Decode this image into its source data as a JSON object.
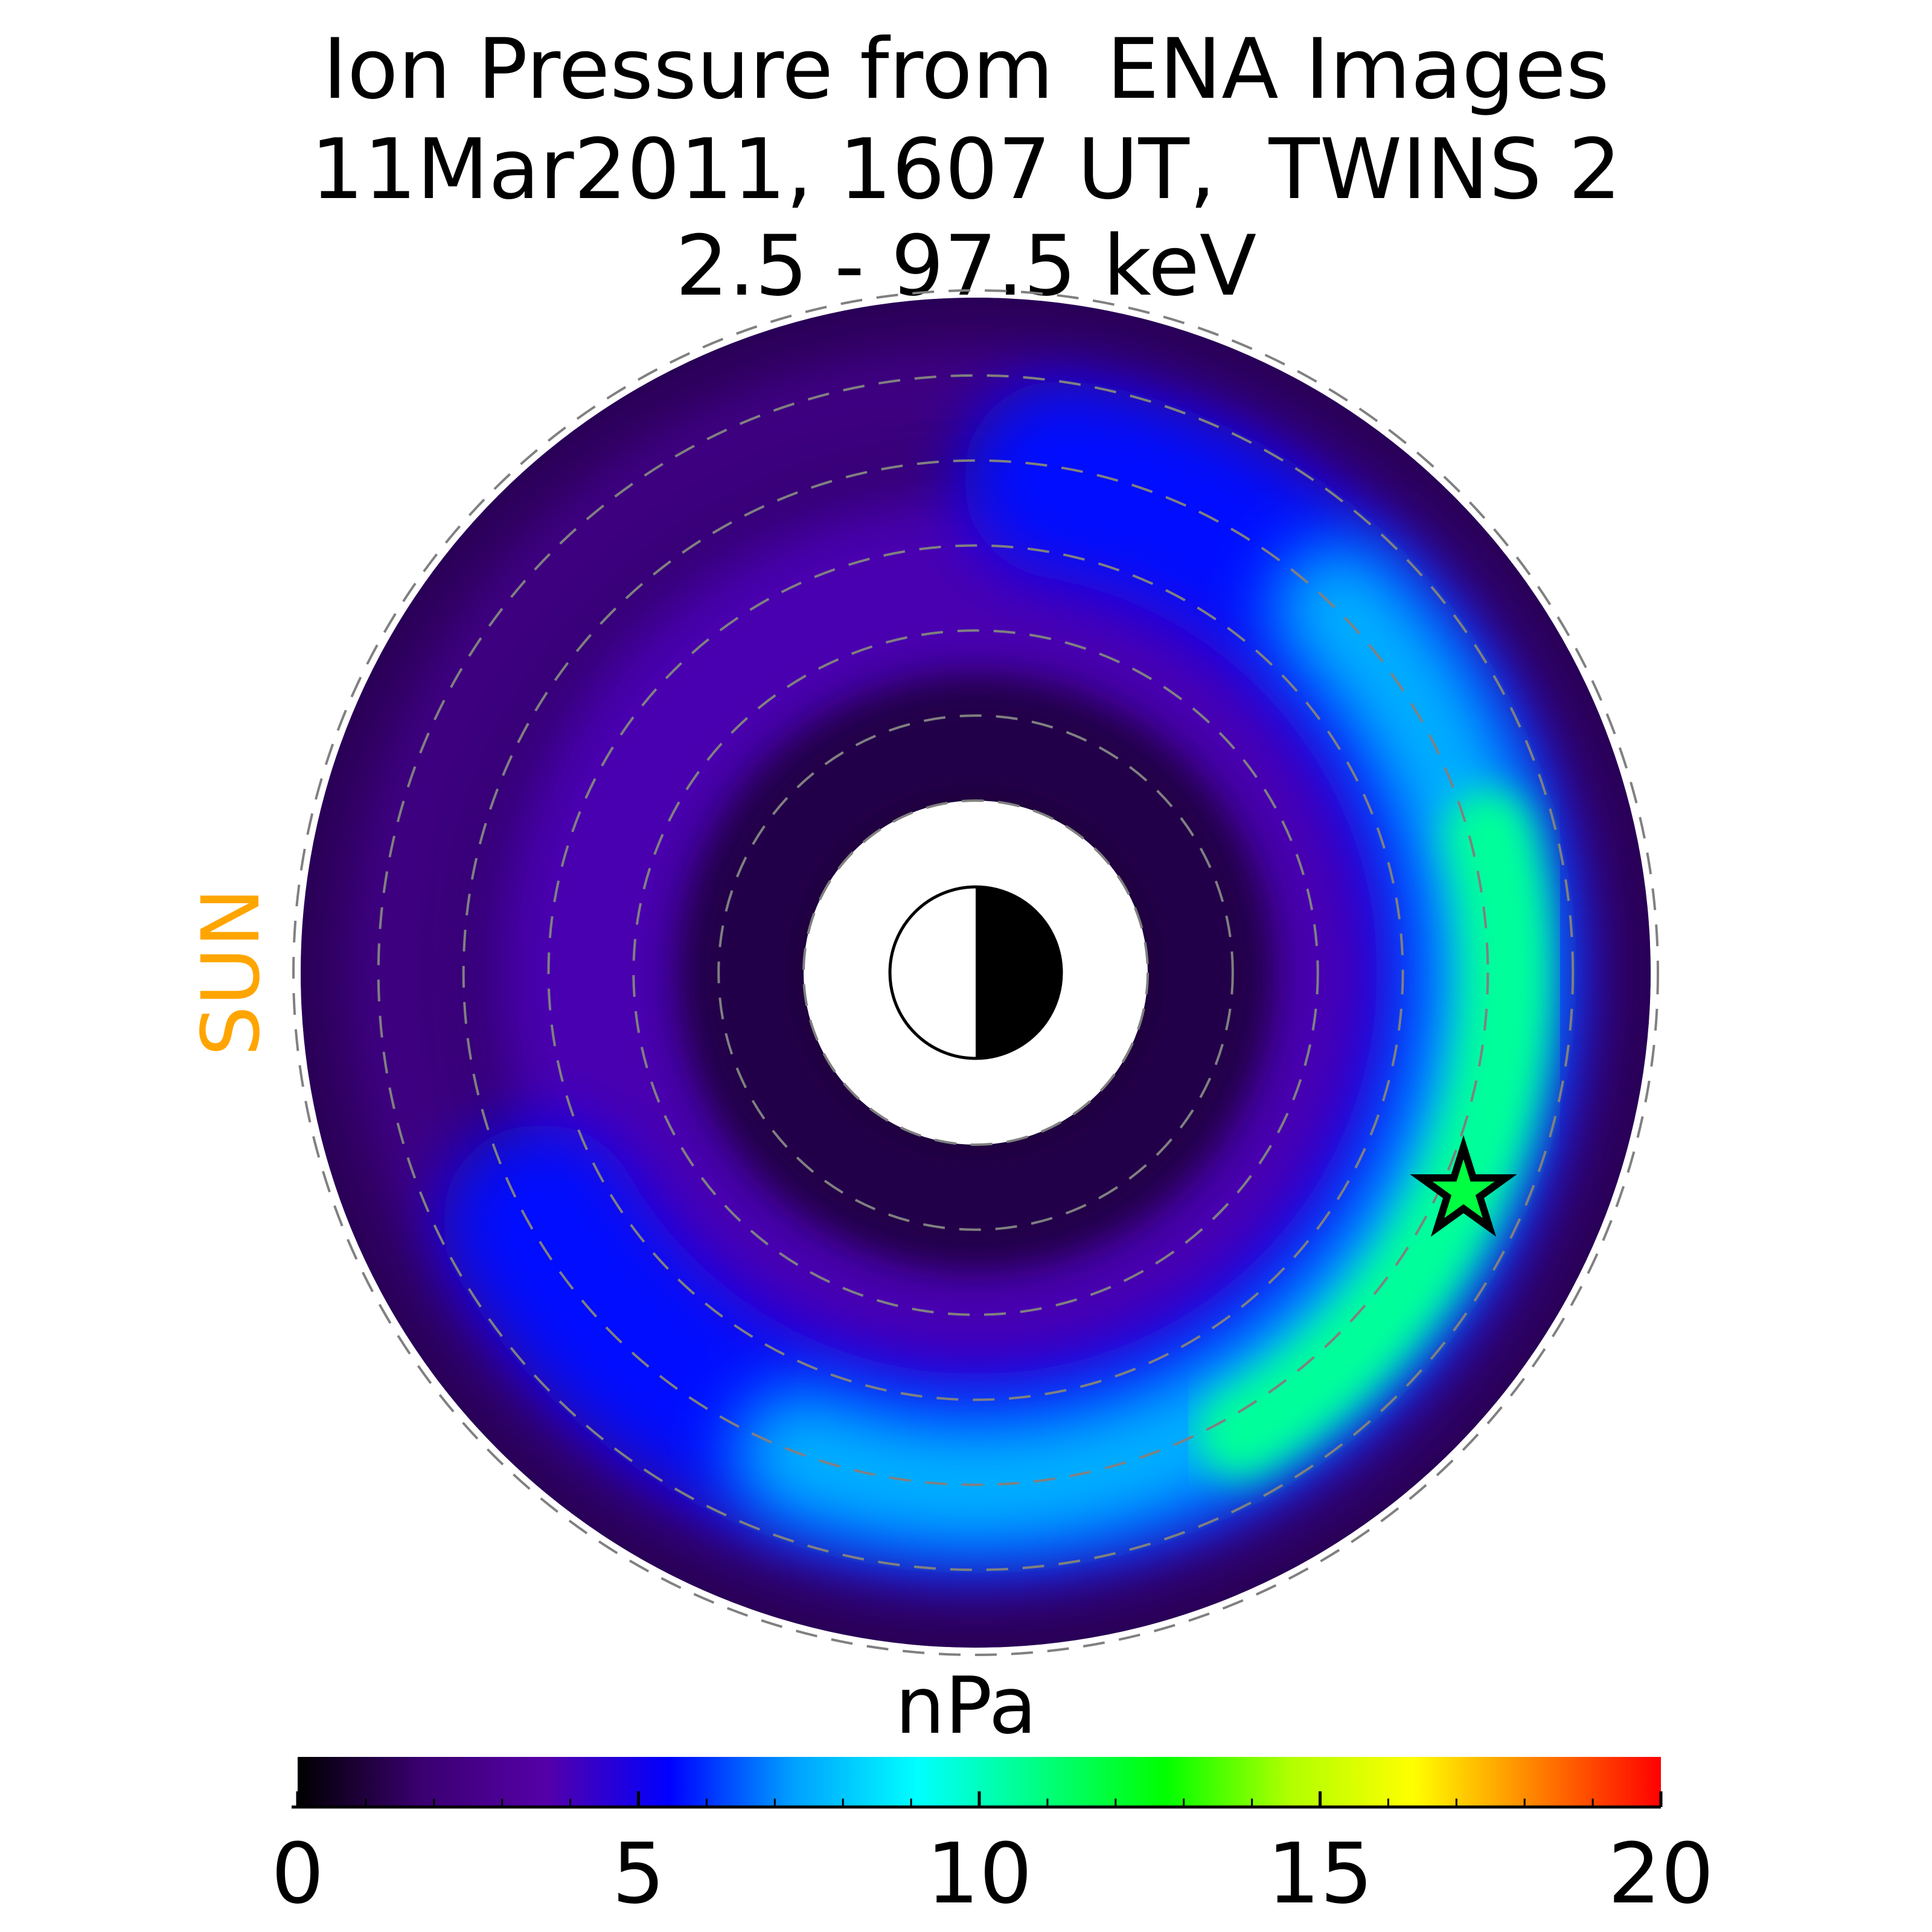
{
  "chart_data": {
    "type": "heatmap",
    "title": [
      "Ion Pressure from  ENA Images",
      "11Mar2011, 1607 UT,  TWINS 2",
      "2.5 - 97.5 keV"
    ],
    "sun_label": "SUN",
    "colorbar": {
      "label": "nPa",
      "range": [
        0,
        20
      ],
      "ticks": [
        0,
        5,
        10,
        15,
        20
      ],
      "tick_labels": [
        "0",
        "5",
        "10",
        "15",
        "20"
      ],
      "colormap": [
        "#000000",
        "#3a0070",
        "#5500a8",
        "#0000ff",
        "#00a0ff",
        "#00ffff",
        "#00ff7f",
        "#00ff00",
        "#b0ff00",
        "#ffff00",
        "#ff8000",
        "#ff0000"
      ]
    },
    "polar_map": {
      "radial_rings": 7,
      "peak_pressure_nPa": 10.5,
      "peak_location": "dusk-side, near-Earth ring",
      "min_pressure_nPa": 0,
      "star_marker": "pressure peak"
    },
    "earth_icon": "half-lit Earth (day side toward Sun)",
    "colors": {
      "sun_label": "#ffa500",
      "ring_lines": "#808080"
    }
  }
}
